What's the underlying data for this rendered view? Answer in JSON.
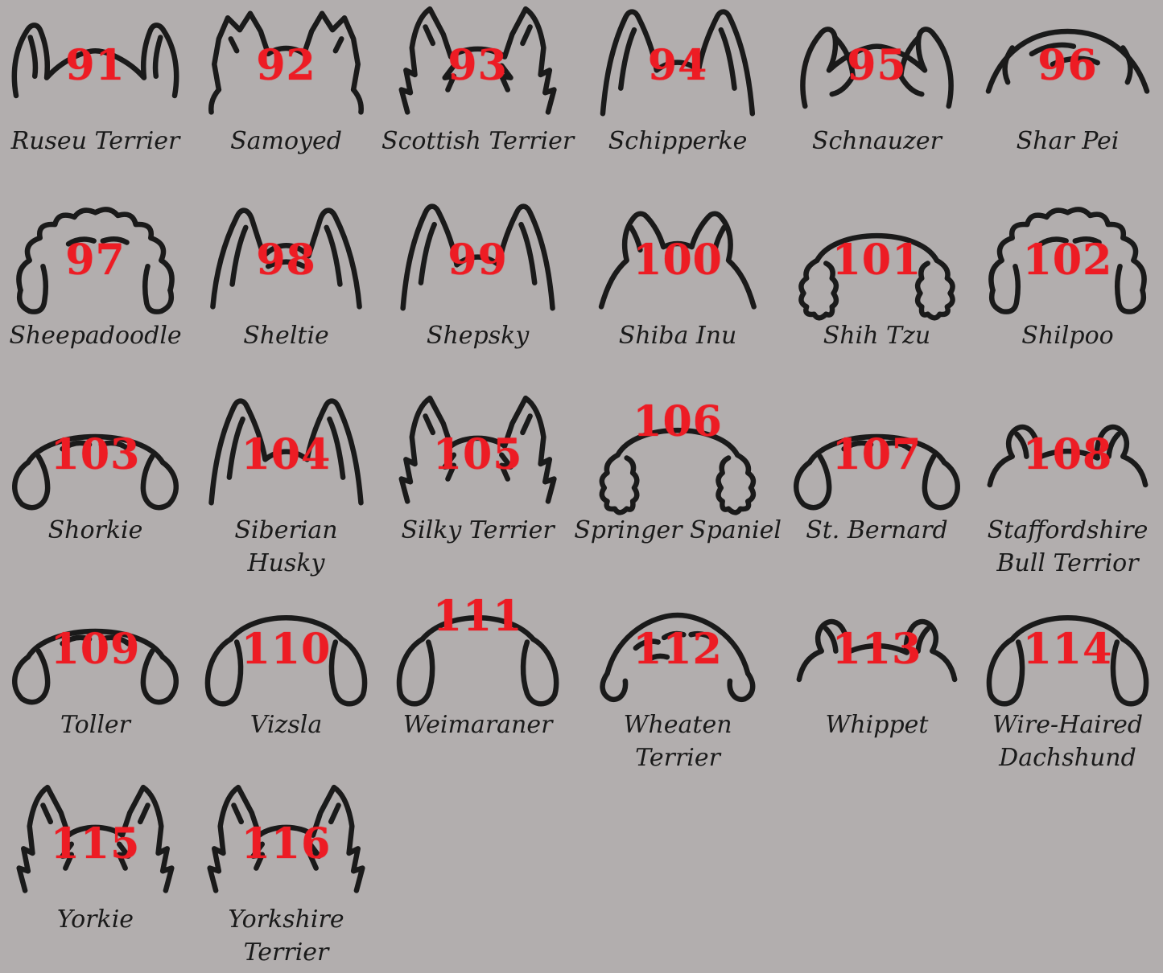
{
  "page": {
    "background_color": "#b2aeae",
    "number_color": "#ed1c24",
    "line_color": "#1a1a1a",
    "description": "Numbered dog breed ear outline chart, designs 91 to 116"
  },
  "items": [
    {
      "number": "91",
      "name": "Ruseu Terrier",
      "ear_style": "folded-side"
    },
    {
      "number": "92",
      "name": "Samoyed",
      "ear_style": "fluffy-prick"
    },
    {
      "number": "93",
      "name": "Scottish Terrier",
      "ear_style": "fuzzy-prick"
    },
    {
      "number": "94",
      "name": "Schipperke",
      "ear_style": "prick"
    },
    {
      "number": "95",
      "name": "Schnauzer",
      "ear_style": "button-fold"
    },
    {
      "number": "96",
      "name": "Shar Pei",
      "ear_style": "wrinkle-dome"
    },
    {
      "number": "97",
      "name": "Sheepadoodle",
      "ear_style": "curly-dome"
    },
    {
      "number": "98",
      "name": "Sheltie",
      "ear_style": "semi-prick"
    },
    {
      "number": "99",
      "name": "Shepsky",
      "ear_style": "prick"
    },
    {
      "number": "100",
      "name": "Shiba Inu",
      "ear_style": "small-prick"
    },
    {
      "number": "101",
      "name": "Shih Tzu",
      "ear_style": "wavy-drop"
    },
    {
      "number": "102",
      "name": "Shilpoo",
      "ear_style": "curly-dome"
    },
    {
      "number": "103",
      "name": "Shorkie",
      "ear_style": "drop"
    },
    {
      "number": "104",
      "name": "Siberian\nHusky",
      "ear_style": "prick"
    },
    {
      "number": "105",
      "name": "Silky Terrier",
      "ear_style": "fuzzy-prick"
    },
    {
      "number": "106",
      "name": "Springer Spaniel",
      "ear_style": "wavy-drop",
      "num_pos": "high"
    },
    {
      "number": "107",
      "name": "St. Bernard",
      "ear_style": "drop"
    },
    {
      "number": "108",
      "name": "Staffordshire\nBull Terrior",
      "ear_style": "rose"
    },
    {
      "number": "109",
      "name": "Toller",
      "ear_style": "drop"
    },
    {
      "number": "110",
      "name": "Vizsla",
      "ear_style": "long-drop"
    },
    {
      "number": "111",
      "name": "Weimaraner",
      "ear_style": "long-drop",
      "num_pos": "high"
    },
    {
      "number": "112",
      "name": "Wheaten\nTerrier",
      "ear_style": "shaggy-dome"
    },
    {
      "number": "113",
      "name": "Whippet",
      "ear_style": "rose"
    },
    {
      "number": "114",
      "name": "Wire-Haired\nDachshund",
      "ear_style": "long-drop"
    },
    {
      "number": "115",
      "name": "Yorkie",
      "ear_style": "fuzzy-prick"
    },
    {
      "number": "116",
      "name": "Yorkshire\nTerrier",
      "ear_style": "fuzzy-prick"
    }
  ]
}
